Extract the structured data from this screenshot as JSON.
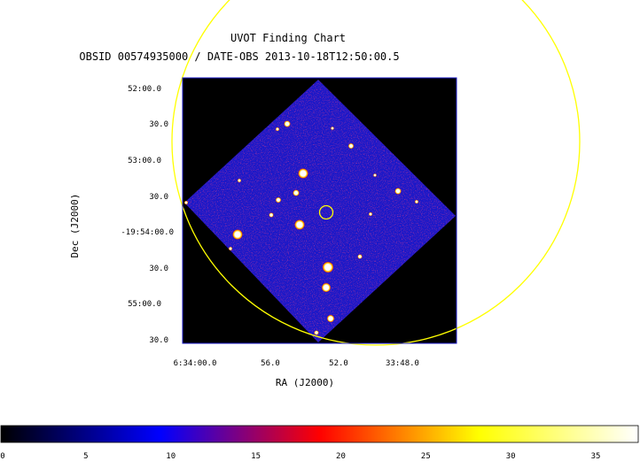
{
  "title": "UVOT Finding Chart",
  "subtitle": "OBSID 00574935000 / DATE-OBS 2013-10-18T12:50:00.5",
  "x_axis": {
    "label": "RA (J2000)",
    "ticks": [
      "6:34:00.0",
      "56.0",
      "52.0",
      "33:48.0"
    ]
  },
  "y_axis": {
    "label": "Dec (J2000)",
    "ticks": [
      "52:00.0",
      "30.0",
      "53:00.0",
      "30.0",
      "-19:54:00.0",
      "30.0",
      "55:00.0",
      "30.0"
    ]
  },
  "colorbar": {
    "ticks": [
      "0",
      "5",
      "10",
      "15",
      "20",
      "25",
      "30",
      "35"
    ],
    "range": [
      0,
      37.5
    ],
    "colormap": [
      "#000000",
      "#0000ff",
      "#ff0000",
      "#ffff00",
      "#ffffff"
    ]
  },
  "colors": {
    "image_background": "#000000",
    "field_fill": "#1a18c8",
    "circle_color": "#ffff00",
    "source_color": "#ffffff"
  }
}
